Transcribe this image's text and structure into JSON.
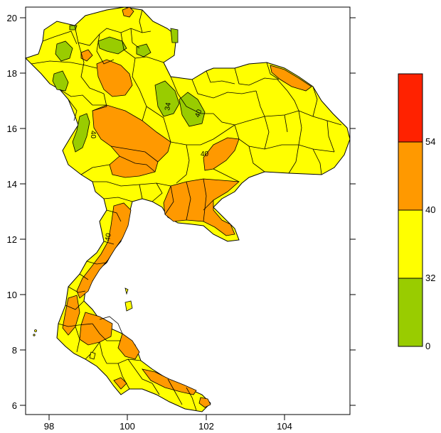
{
  "map": {
    "x_ticks": [
      "98",
      "100",
      "102",
      "104"
    ],
    "y_ticks": [
      "20",
      "18",
      "16",
      "14",
      "12",
      "10",
      "8",
      "6"
    ],
    "contour_labels": [
      "40",
      "40",
      "40",
      "34",
      "40"
    ]
  },
  "legend": {
    "bins": [
      {
        "from": "0",
        "to": "32",
        "color": "#99cc00"
      },
      {
        "from": "32",
        "to": "40",
        "color": "#ffff00"
      },
      {
        "from": "40",
        "to": "54",
        "color": "#ff9900"
      },
      {
        "from": "54",
        "to": "",
        "color": "#ff2200"
      }
    ],
    "labels": [
      "54",
      "40",
      "32",
      "0"
    ]
  },
  "colors": {
    "land": "#ffff00",
    "low": "#99cc00",
    "mid": "#ff9900",
    "high": "#ff2200",
    "border": "#000000"
  }
}
